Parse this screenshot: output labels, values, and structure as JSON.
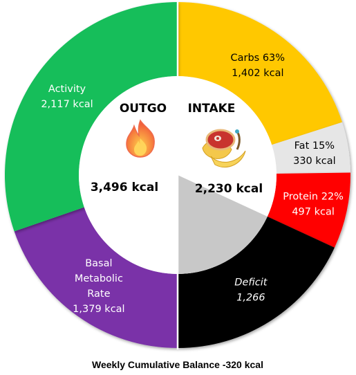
{
  "chart_data": {
    "type": "pie",
    "total_label": "Weekly Cumulative Balance -320 kcal",
    "outgo": {
      "heading": "OUTGO",
      "total": 3496,
      "total_label": "3,496 kcal",
      "icon": "fire-icon",
      "slices": [
        {
          "id": "activity",
          "lines": [
            "Activity",
            "2,117 kcal"
          ],
          "value": 2117,
          "color": "#12BE5A",
          "text_color": "#ffffff"
        },
        {
          "id": "basal",
          "lines": [
            "Basal",
            "Metabolic",
            "Rate",
            "1,379 kcal"
          ],
          "value": 1379,
          "color": "#7A32A8",
          "text_color": "#ffffff"
        }
      ]
    },
    "intake": {
      "heading": "INTAKE",
      "total": 2230,
      "total_label": "2,230 kcal",
      "icon": "steak-and-bananas-icon",
      "slices": [
        {
          "id": "carbs",
          "lines": [
            "Carbs 63%",
            "1,402 kcal"
          ],
          "value": 1402,
          "color": "#FFC800",
          "text_color": "#000000"
        },
        {
          "id": "fat",
          "lines": [
            "Fat 15%",
            "330 kcal"
          ],
          "value": 330,
          "color": "#E6E6E6",
          "text_color": "#000000"
        },
        {
          "id": "protein",
          "lines": [
            "Protein 22%",
            "497 kcal"
          ],
          "value": 497,
          "color": "#FF0000",
          "text_color": "#ffffff"
        },
        {
          "id": "deficit",
          "lines": [
            "Deficit",
            "1,266"
          ],
          "value": 1266,
          "color": "#000000",
          "text_color": "#ffffff",
          "italic": true
        }
      ],
      "deficit_wedge_color": "#C8C8C8"
    }
  }
}
